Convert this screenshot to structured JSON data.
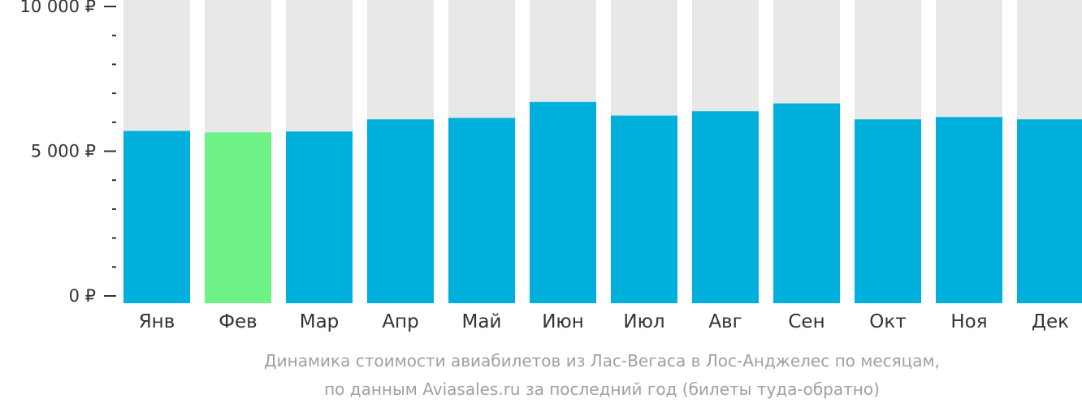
{
  "chart_data": {
    "type": "bar",
    "categories": [
      "Янв",
      "Фев",
      "Мар",
      "Апр",
      "Май",
      "Июн",
      "Июл",
      "Авг",
      "Сен",
      "Окт",
      "Ноя",
      "Дек"
    ],
    "values": [
      5700,
      5650,
      5680,
      6100,
      6150,
      6700,
      6230,
      6380,
      6650,
      6100,
      6180,
      6100
    ],
    "highlight_index": 1,
    "ylim": [
      0,
      10000
    ],
    "y_ticks": [
      {
        "value": 0,
        "label": "0 ₽"
      },
      {
        "value": 5000,
        "label": "5 000 ₽"
      },
      {
        "value": 10000,
        "label": "10 000 ₽"
      }
    ],
    "minor_tick_step": 1000,
    "grid": false,
    "colors": {
      "bar": "#00b0dc",
      "highlight": "#6ef286",
      "background_bar": "#e8e8e8",
      "axis": "#333333"
    }
  },
  "caption": {
    "line1": "Динамика стоимости авиабилетов из Лас-Вегаса в Лос-Анджелес по месяцам,",
    "line2": "по данным Aviasales.ru за последний год (билеты туда-обратно)"
  }
}
